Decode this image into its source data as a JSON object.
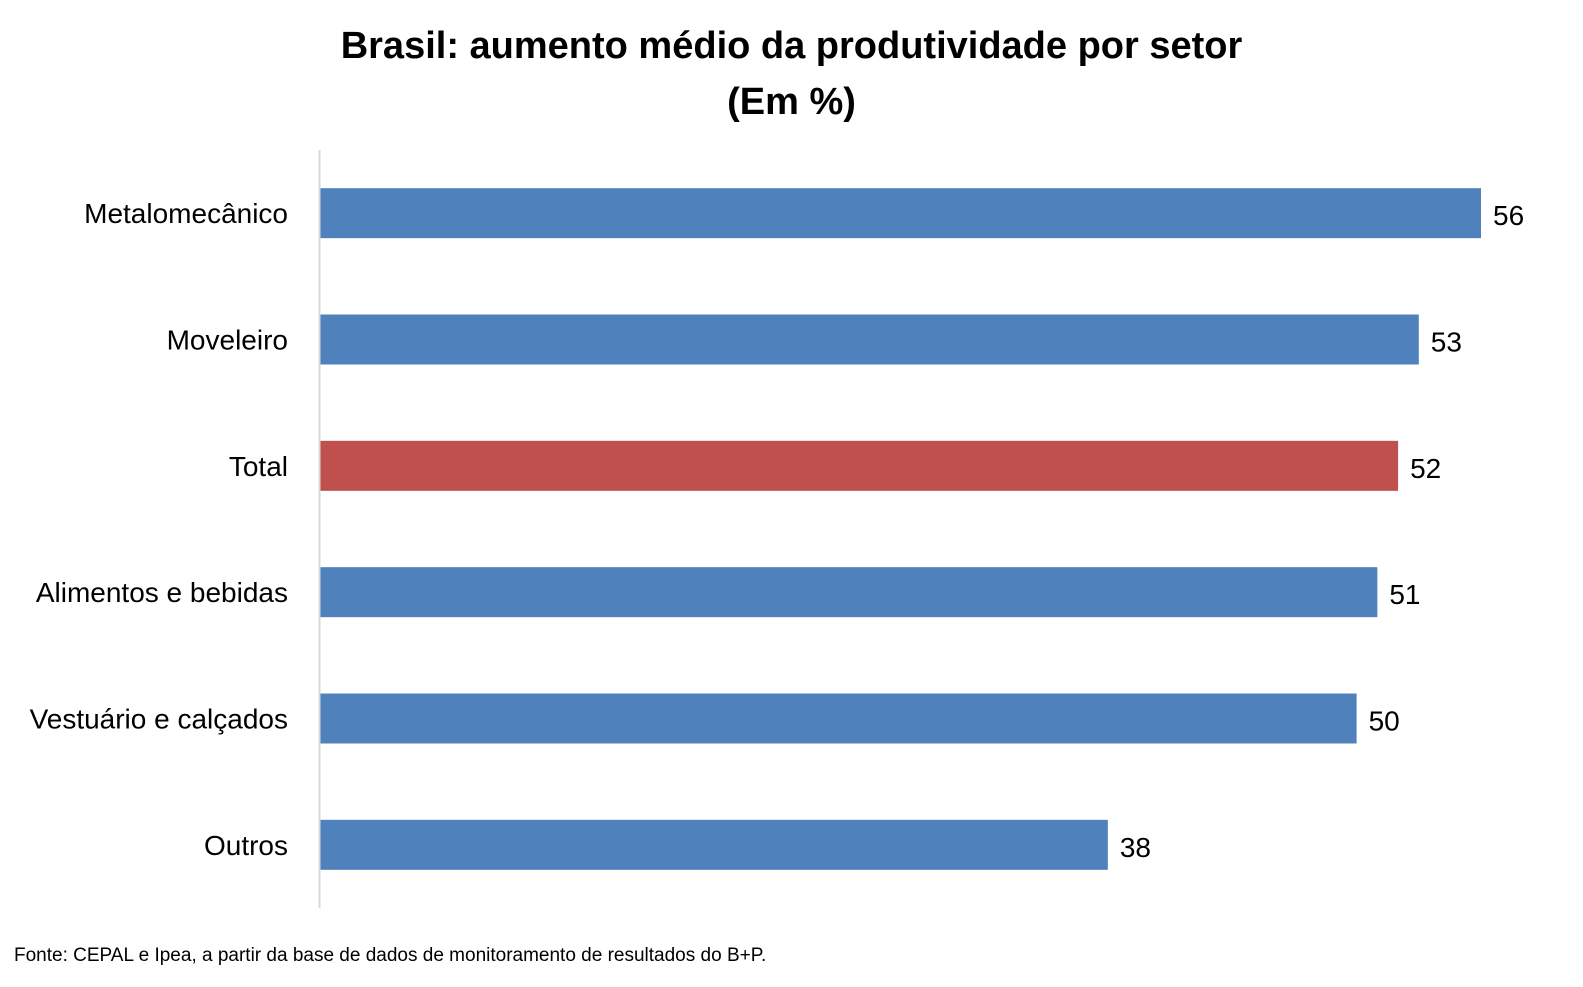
{
  "chart_data": {
    "type": "bar",
    "orientation": "horizontal",
    "title": "Brasil: aumento médio da produtividade por setor",
    "subtitle": "(Em %)",
    "categories": [
      "Metalomecânico",
      "Moveleiro",
      "Total",
      "Alimentos e bebidas",
      "Vestuário e calçados",
      "Outros"
    ],
    "values": [
      56,
      53,
      52,
      51,
      50,
      38
    ],
    "highlight_category": "Total",
    "colors": {
      "default": "#4f81bd",
      "highlight": "#c0504d",
      "axis": "#d9d9d9"
    },
    "xlim": [
      0,
      56
    ],
    "grid": false,
    "data_labels": true,
    "xlabel": "",
    "ylabel": ""
  },
  "source_note": "Fonte: CEPAL e Ipea, a partir da base de dados de monitoramento de resultados do B+P."
}
